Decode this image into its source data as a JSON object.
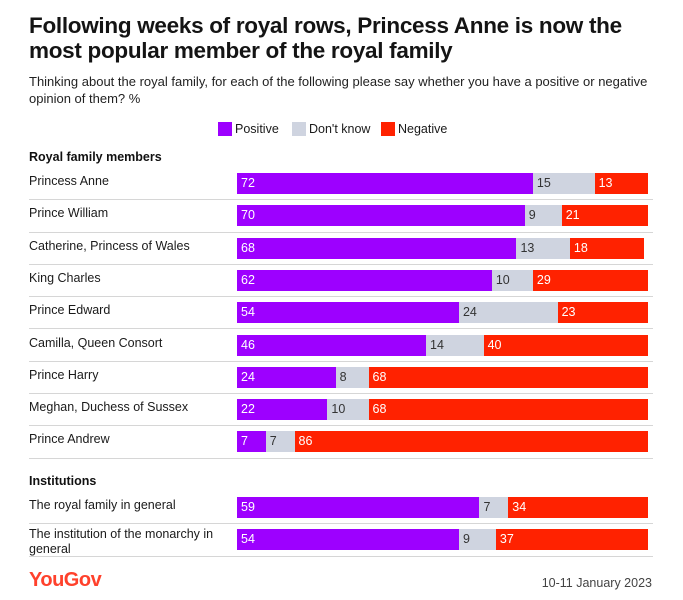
{
  "header": {
    "title": "Following weeks of royal rows, Princess Anne is now the most popular member of the royal family",
    "subtitle": "Thinking about the royal family, for each of the following please say whether you have a positive or negative opinion of them? %"
  },
  "legend": [
    {
      "label": "Positive",
      "color": "#9d00ff"
    },
    {
      "label": "Don't know",
      "color": "#cfd4e0"
    },
    {
      "label": "Negative",
      "color": "#ff2200"
    }
  ],
  "chart_data": {
    "type": "bar",
    "stacked": true,
    "orientation": "horizontal",
    "xlim": [
      0,
      100
    ],
    "series_names": [
      "Positive",
      "Don't know",
      "Negative"
    ],
    "groups": [
      {
        "title": "Royal family members",
        "rows": [
          {
            "label": "Princess Anne",
            "values": [
              72,
              15,
              13
            ]
          },
          {
            "label": "Prince William",
            "values": [
              70,
              9,
              21
            ]
          },
          {
            "label": "Catherine, Princess of Wales",
            "values": [
              68,
              13,
              18
            ]
          },
          {
            "label": "King Charles",
            "values": [
              62,
              10,
              29
            ]
          },
          {
            "label": "Prince Edward",
            "values": [
              54,
              24,
              23
            ]
          },
          {
            "label": "Camilla, Queen Consort",
            "values": [
              46,
              14,
              40
            ]
          },
          {
            "label": "Prince Harry",
            "values": [
              24,
              8,
              68
            ]
          },
          {
            "label": "Meghan, Duchess of Sussex",
            "values": [
              22,
              10,
              68
            ]
          },
          {
            "label": "Prince Andrew",
            "values": [
              7,
              7,
              86
            ]
          }
        ]
      },
      {
        "title": "Institutions",
        "rows": [
          {
            "label": "The royal family in general",
            "values": [
              59,
              7,
              34
            ]
          },
          {
            "label": "The institution of the monarchy in general",
            "values": [
              54,
              9,
              37
            ]
          }
        ]
      }
    ]
  },
  "footer": {
    "logo": "YouGov",
    "date": "10-11 January 2023"
  }
}
